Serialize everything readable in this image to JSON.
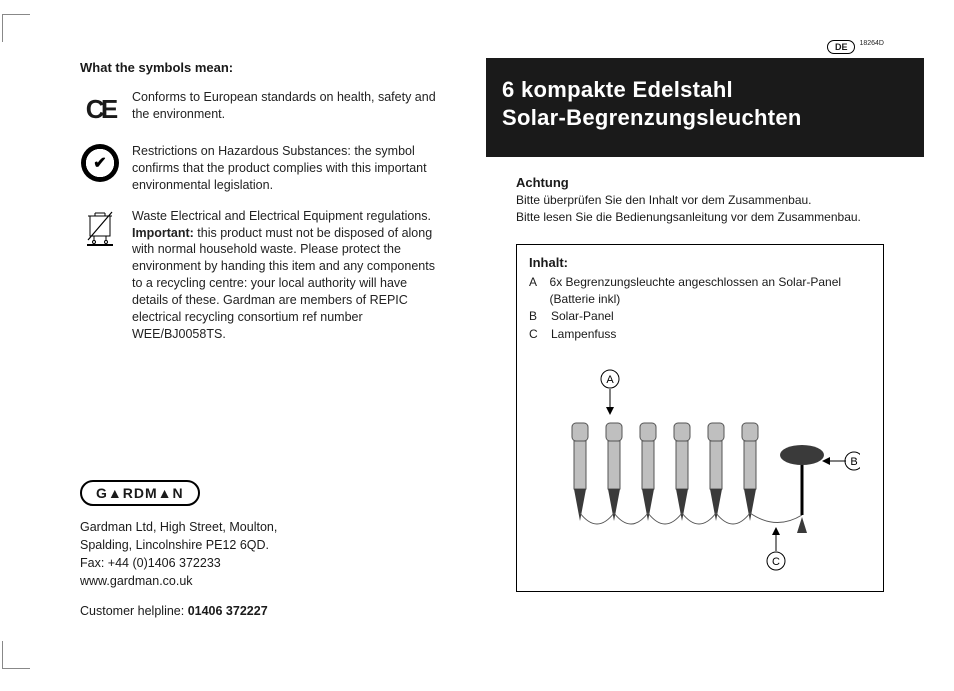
{
  "left": {
    "symbols_heading": "What the symbols mean:",
    "items": [
      {
        "icon": "ce",
        "text_html": "Conforms to European standards on health, safety and the environment."
      },
      {
        "icon": "weee-badge",
        "text_html": "Restrictions on Hazardous Substances: the symbol confirms that the product complies with this important environmental legislation."
      },
      {
        "icon": "bin",
        "text_html": "Waste Electrical and Electrical Equipment regulations. <b>Important:</b> this product must not be disposed of along with normal household  waste. Please protect the environment by handing this item and any components to a recycling centre: your local authority will have details of these. Gardman are members of REPIC electrical recycling consortium ref number WEE/BJ0058TS."
      }
    ],
    "brand": "G▲RDM▲N",
    "company_lines": [
      "Gardman Ltd, High Street, Moulton,",
      "Spalding, Lincolnshire PE12 6QD.",
      "Fax: +44 (0)1406 372233",
      "www.gardman.co.uk"
    ],
    "helpline_label": "Customer helpline: ",
    "helpline_number": "01406 372227"
  },
  "right": {
    "doc_number": "18264D",
    "lang": "DE",
    "title_line1": "6 kompakte Edelstahl",
    "title_line2": "Solar-Begrenzungsleuchten",
    "attention_head": "Achtung",
    "attention_lines": [
      "Bitte überprüfen Sie den Inhalt vor dem Zusammenbau.",
      "Bitte lesen Sie die Bedienungsanleitung vor dem Zusammenbau."
    ],
    "inhalt_title": "Inhalt:",
    "inhalt_items": [
      {
        "label": "A",
        "text": "6x Begrenzungsleuchte angeschlossen an Solar-Panel (Batterie inkl)"
      },
      {
        "label": "B",
        "text": "Solar-Panel"
      },
      {
        "label": "C",
        "text": "Lampenfuss"
      }
    ],
    "callouts": {
      "A": "A",
      "B": "B",
      "C": "C"
    }
  },
  "colors": {
    "page_bg": "#ffffff",
    "title_bg": "#1a1a1a",
    "text": "#1a1a1a",
    "diagram_gray": "#bfbfbf"
  }
}
